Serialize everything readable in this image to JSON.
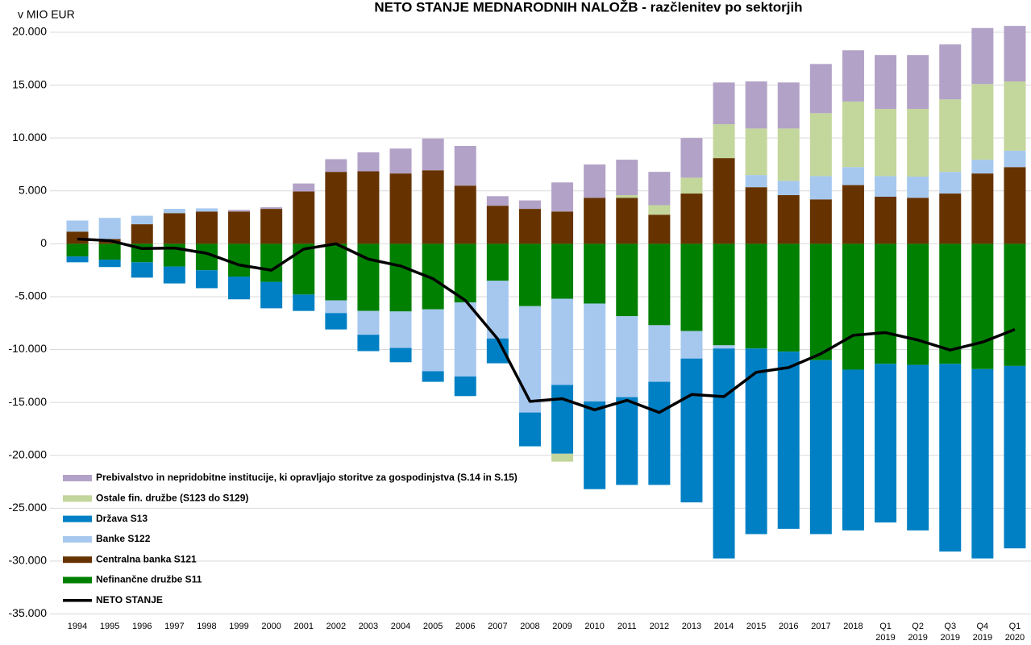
{
  "chart_data": {
    "type": "bar",
    "stacked": true,
    "title": "NETO STANJE MEDNARODNIH NALOŽB - razčlenitev po sektorjih",
    "y_label": "v MIO EUR",
    "categories": [
      "1994",
      "1995",
      "1996",
      "1997",
      "1998",
      "1999",
      "2000",
      "2001",
      "2002",
      "2003",
      "2004",
      "2005",
      "2006",
      "2007",
      "2008",
      "2009",
      "2010",
      "2011",
      "2012",
      "2013",
      "2014",
      "2015",
      "2016",
      "2017",
      "2018",
      "Q1\n2019",
      "Q2\n2019",
      "Q3\n2019",
      "Q4\n2019",
      "Q1\n2020"
    ],
    "ylim": [
      -35000,
      20000
    ],
    "yticks": [
      {
        "value": -35000,
        "label": "-35.000"
      },
      {
        "value": -30000,
        "label": "-30.000"
      },
      {
        "value": -25000,
        "label": "-25.000"
      },
      {
        "value": -20000,
        "label": "-20.000"
      },
      {
        "value": -15000,
        "label": "-15.000"
      },
      {
        "value": -10000,
        "label": "-10.000"
      },
      {
        "value": -5000,
        "label": "-5.000"
      },
      0,
      {
        "value": 5000,
        "label": "5.000"
      },
      {
        "value": 10000,
        "label": "10.000"
      },
      {
        "value": 15000,
        "label": "15.000"
      },
      {
        "value": 20000,
        "label": "20.000"
      }
    ],
    "grid": true,
    "legend": "lower left",
    "series": [
      {
        "name": "Nefinančne družbe S11",
        "color": "#008000",
        "values": [
          -1200,
          -1500,
          -1750,
          -2150,
          -2500,
          -3100,
          -3600,
          -4800,
          -5350,
          -6350,
          -6400,
          -6200,
          -5550,
          -3500,
          -5900,
          -5200,
          -5650,
          -6850,
          -7700,
          -8250,
          -9600,
          -9900,
          -10200,
          -11000,
          -11900,
          -11350,
          -11450,
          -11350,
          -11850,
          -11550
        ]
      },
      {
        "name": "Centralna banka S121",
        "color": "#663300",
        "values": [
          1150,
          450,
          1850,
          2900,
          3050,
          3050,
          3300,
          4950,
          6800,
          6850,
          6650,
          6950,
          5500,
          3600,
          3300,
          3050,
          4350,
          4350,
          2750,
          4750,
          8100,
          5350,
          4600,
          4200,
          5550,
          4450,
          4350,
          4750,
          6650,
          7250
        ]
      },
      {
        "name": "Banke S122",
        "color": "#a6c8ef",
        "values": [
          1050,
          2000,
          800,
          400,
          300,
          0,
          0,
          0,
          -1200,
          -2250,
          -3450,
          -5850,
          -7000,
          -5450,
          -10050,
          -8150,
          -9250,
          -7650,
          -5350,
          -2600,
          -300,
          1150,
          1350,
          2200,
          1700,
          1950,
          2000,
          2050,
          1300,
          1550
        ]
      },
      {
        "name": "Država S13",
        "color": "#0080c4",
        "values": [
          -550,
          -700,
          -1450,
          -1600,
          -1700,
          -2150,
          -2500,
          -1550,
          -1550,
          -1550,
          -1350,
          -1000,
          -1850,
          -2350,
          -3200,
          -6500,
          -8300,
          -8300,
          -9750,
          -13600,
          -19850,
          -17550,
          -16750,
          -16450,
          -15200,
          -15000,
          -15650,
          -17750,
          -17900,
          -17250
        ]
      },
      {
        "name": "Ostale fin. družbe (S123 do S129)",
        "color": "#c3d69b",
        "values": [
          0,
          0,
          0,
          0,
          0,
          0,
          0,
          0,
          0,
          0,
          0,
          0,
          0,
          0,
          0,
          -750,
          0,
          250,
          900,
          1500,
          3200,
          4400,
          4950,
          5950,
          6200,
          6350,
          6400,
          6850,
          7150,
          6550
        ]
      },
      {
        "name": "Prebivalstvo in nepridobitne institucije, ki opravljajo storitve za gospodinjstva (S.14 in S.15)",
        "color": "#b3a2c7",
        "values": [
          0,
          0,
          0,
          0,
          0,
          150,
          150,
          750,
          1200,
          1800,
          2350,
          3000,
          3750,
          900,
          800,
          2750,
          3150,
          3350,
          3150,
          3750,
          3950,
          4450,
          4350,
          4650,
          4850,
          5100,
          5100,
          5200,
          5300,
          5250
        ]
      }
    ],
    "line": {
      "name": "NETO STANJE",
      "color": "#000000",
      "values": [
        450,
        300,
        -450,
        -400,
        -900,
        -2000,
        -2500,
        -500,
        0,
        -1450,
        -2100,
        -3300,
        -5350,
        -9000,
        -14900,
        -14650,
        -15700,
        -14800,
        -15950,
        -14250,
        -14450,
        -12150,
        -11700,
        -10400,
        -8650,
        -8400,
        -9100,
        -10050,
        -9300,
        -8100
      ]
    }
  }
}
